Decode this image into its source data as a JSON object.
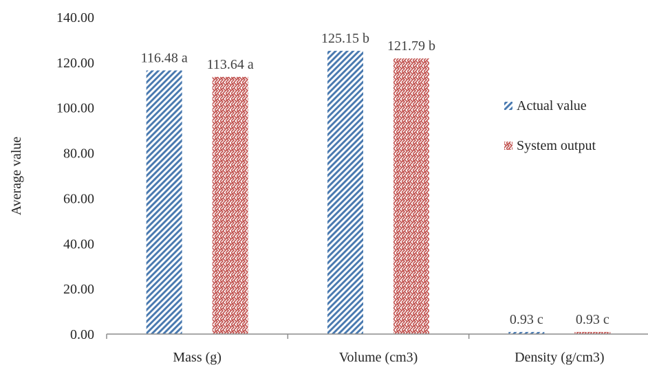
{
  "chart_data": {
    "type": "bar",
    "categories": [
      "Mass (g)",
      "Volume (cm3)",
      "Density (g/cm3)"
    ],
    "series": [
      {
        "name": "Actual value",
        "values": [
          116.48,
          125.15,
          0.93
        ],
        "labels": [
          "116.48 a",
          "125.15 b",
          "0.93 c"
        ],
        "color": "#4a7ab0",
        "pattern": "diagonal-stripes"
      },
      {
        "name": "System output",
        "values": [
          113.64,
          121.79,
          0.93
        ],
        "labels": [
          "113.64 a",
          "121.79 b",
          "0.93 c"
        ],
        "color": "#c0504d",
        "pattern": "weave"
      }
    ],
    "ylabel": "Average value",
    "ylim": [
      0,
      140
    ],
    "yticks": [
      "0.00",
      "20.00",
      "40.00",
      "60.00",
      "80.00",
      "100.00",
      "120.00",
      "140.00"
    ],
    "grid": false,
    "legend_position": "right"
  }
}
